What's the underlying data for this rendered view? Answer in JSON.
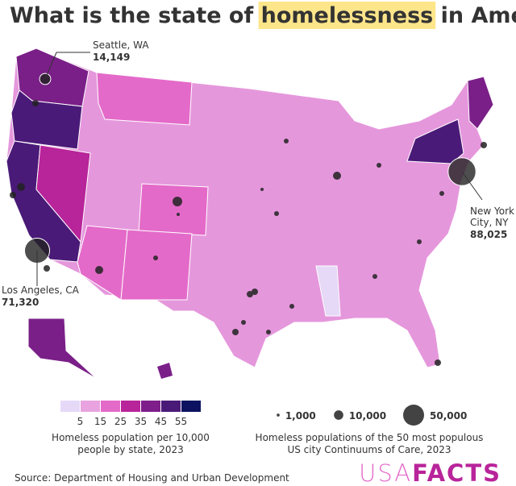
{
  "title": {
    "before": "What is the state of",
    "highlight": "homelessness",
    "after": "in America?"
  },
  "cities": [
    {
      "name": "Seattle, WA",
      "value": 14149,
      "label": "14,149"
    },
    {
      "name": "Los Angeles, CA",
      "value": 71320,
      "label": "71,320"
    },
    {
      "name": "New York",
      "name2": "City, NY",
      "value": 88025,
      "label": "88,025"
    }
  ],
  "color_legend": {
    "colors": [
      "#e6d9f7",
      "#e8a3e0",
      "#e46ac9",
      "#b8249a",
      "#7d1e8a",
      "#4a1a78",
      "#0d1260"
    ],
    "ticks": [
      5,
      15,
      25,
      35,
      45,
      55
    ],
    "title": [
      "Homeless population per 10,000",
      "people by state, 2023"
    ]
  },
  "size_legend": {
    "values": [
      {
        "value": 1000,
        "label": "1,000"
      },
      {
        "value": 10000,
        "label": "10,000"
      },
      {
        "value": 50000,
        "label": "50,000"
      }
    ],
    "title": [
      "Homeless populations of the 50 most populous",
      "US city Continuums of Care, 2023"
    ]
  },
  "source": "Source: Department of Housing and Urban Development",
  "logo": {
    "light": "USA",
    "bold": "FACTS"
  }
}
